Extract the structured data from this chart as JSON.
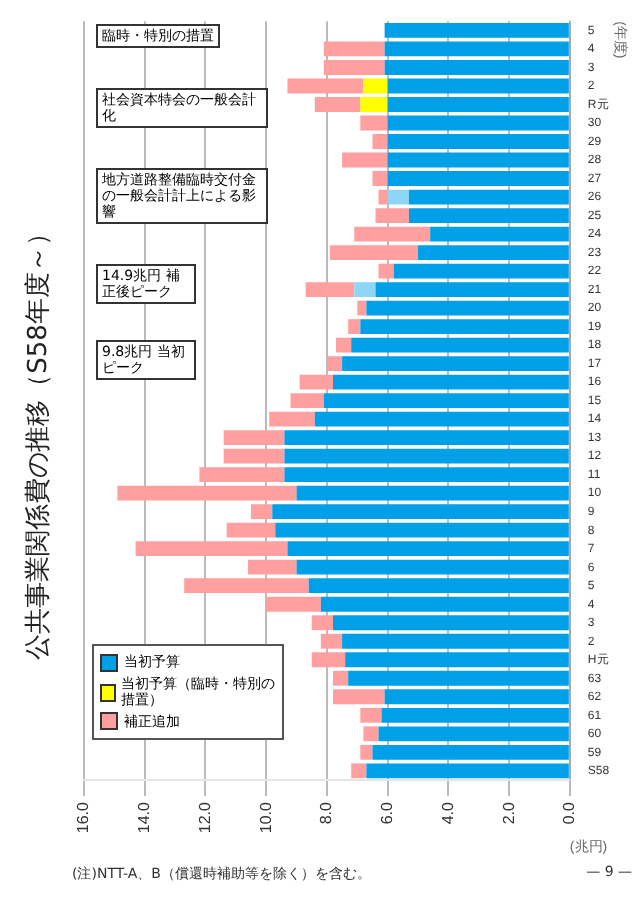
{
  "chart_data": {
    "type": "bar",
    "orientation": "horizontal",
    "stacked": true,
    "title": "公共事業関係費の推移（S58年度～）",
    "xlabel": "(兆円)",
    "ylabel": "(年度)",
    "categories": [
      "5",
      "4",
      "3",
      "2",
      "R元",
      "30",
      "29",
      "28",
      "27",
      "26",
      "25",
      "24",
      "23",
      "22",
      "21",
      "20",
      "19",
      "18",
      "17",
      "16",
      "15",
      "14",
      "13",
      "12",
      "11",
      "10",
      "9",
      "8",
      "7",
      "6",
      "5",
      "4",
      "3",
      "2",
      "H元",
      "63",
      "62",
      "61",
      "60",
      "59",
      "S58"
    ],
    "series": [
      {
        "name": "当初予算",
        "color": "#00a0e9",
        "values": [
          6.1,
          6.1,
          6.1,
          6.0,
          6.0,
          6.0,
          6.0,
          6.0,
          6.0,
          5.3,
          5.3,
          4.6,
          5.0,
          5.8,
          6.4,
          6.7,
          6.9,
          7.2,
          7.5,
          7.8,
          8.1,
          8.4,
          9.4,
          9.4,
          9.4,
          9.0,
          9.8,
          9.7,
          9.3,
          9.0,
          8.6,
          8.2,
          7.8,
          7.5,
          7.4,
          7.3,
          6.1,
          6.2,
          6.3,
          6.5,
          6.7
        ]
      },
      {
        "color": "#8fd6f6",
        "values": [
          null,
          null,
          null,
          null,
          null,
          null,
          null,
          null,
          null,
          0.7,
          null,
          null,
          null,
          null,
          0.7,
          null,
          null,
          null,
          null,
          null,
          null,
          null,
          null,
          null,
          null,
          null,
          null,
          null,
          null,
          null,
          null,
          null,
          null,
          null,
          null,
          null,
          null,
          null,
          null,
          null,
          null
        ]
      },
      {
        "name": "当初予算（臨時・特別の措置）",
        "color": "#ffff00",
        "values": [
          null,
          null,
          null,
          0.8,
          0.9,
          null,
          null,
          null,
          null,
          null,
          null,
          null,
          null,
          null,
          null,
          null,
          null,
          null,
          null,
          null,
          null,
          null,
          null,
          null,
          null,
          null,
          null,
          null,
          null,
          null,
          null,
          null,
          null,
          null,
          null,
          null,
          null,
          null,
          null,
          null,
          null
        ]
      },
      {
        "name": "補正追加",
        "color": "#ff9f9f",
        "values": [
          null,
          2.0,
          2.0,
          2.5,
          1.5,
          0.9,
          0.5,
          1.5,
          0.5,
          0.3,
          1.1,
          2.5,
          2.9,
          0.5,
          1.6,
          0.3,
          0.4,
          0.5,
          0.5,
          1.1,
          1.1,
          1.5,
          2.0,
          2.0,
          2.8,
          5.9,
          0.7,
          1.6,
          5.0,
          1.6,
          4.1,
          1.8,
          0.7,
          0.7,
          1.1,
          0.5,
          1.7,
          0.7,
          0.5,
          0.4,
          0.5
        ]
      }
    ],
    "xlim": [
      16,
      0
    ],
    "xticks": [
      {
        "value": 0,
        "label": "0.0"
      },
      {
        "value": 2,
        "label": "2.0"
      },
      {
        "value": 4,
        "label": "4.0"
      },
      {
        "value": 6,
        "label": "6.0"
      },
      {
        "value": 8,
        "label": "8.0"
      },
      {
        "value": 10,
        "label": "10.0"
      },
      {
        "value": 12,
        "label": "12.0"
      },
      {
        "value": 14,
        "label": "14.0"
      },
      {
        "value": 16,
        "label": "16.0"
      }
    ],
    "grid": "x",
    "legend": "bottom left",
    "annotations": [
      "臨時・特別の措置",
      "社会資本特会の一般会計化",
      "地方道路整備臨時交付金の一般会計計上による影響",
      "14.9兆円 補正後ピーク",
      "9.8兆円 当初ピーク",
      "(注)NTT-A、B（償還時補助等を除く）を含む。",
      "— 9 —"
    ]
  }
}
